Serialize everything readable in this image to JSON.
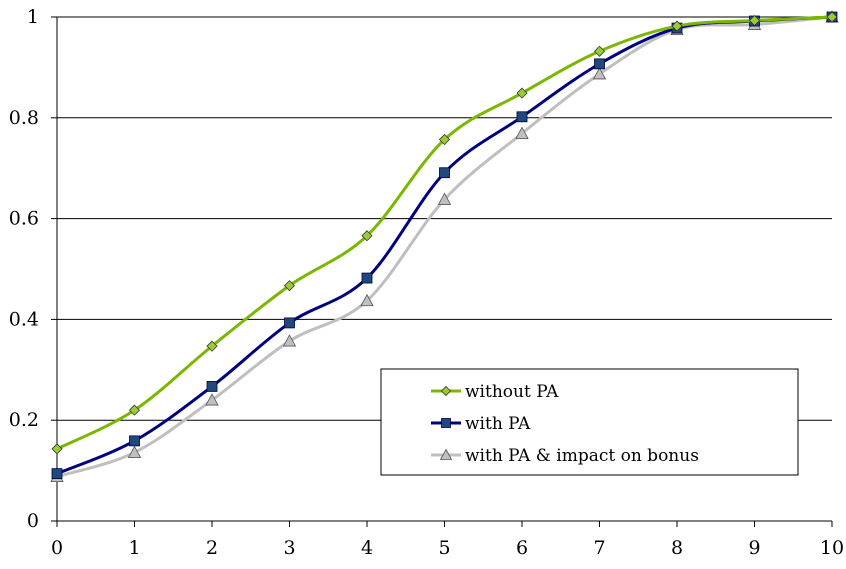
{
  "chart_data": {
    "type": "line",
    "title": "",
    "xlabel": "",
    "ylabel": "",
    "x": [
      0,
      1,
      2,
      3,
      4,
      5,
      6,
      7,
      8,
      9,
      10
    ],
    "xlim": [
      0,
      10
    ],
    "ylim": [
      0,
      1
    ],
    "x_ticks": [
      "0",
      "1",
      "2",
      "3",
      "4",
      "5",
      "6",
      "7",
      "8",
      "9",
      "10"
    ],
    "y_ticks": [
      "0",
      "0.2",
      "0.4",
      "0.6",
      "0.8",
      "1"
    ],
    "grid": "horizontal",
    "legend_position": "lower-right",
    "series": [
      {
        "name": "without PA",
        "color": "#7ab800",
        "marker": "diamond",
        "marker_fill": "#99cc33",
        "values": [
          0.143,
          0.22,
          0.347,
          0.467,
          0.566,
          0.757,
          0.849,
          0.932,
          0.982,
          0.993,
          1.0
        ]
      },
      {
        "name": "with PA",
        "color": "#000080",
        "marker": "square",
        "marker_fill": "#1f497d",
        "values": [
          0.094,
          0.159,
          0.267,
          0.393,
          0.482,
          0.691,
          0.802,
          0.907,
          0.978,
          0.992,
          1.0
        ]
      },
      {
        "name": "with PA & impact on bonus",
        "color": "#bfbfbf",
        "marker": "triangle",
        "marker_fill": "#c0c0c0",
        "values": [
          0.088,
          0.136,
          0.24,
          0.357,
          0.437,
          0.638,
          0.769,
          0.887,
          0.975,
          0.985,
          1.0
        ]
      }
    ]
  }
}
